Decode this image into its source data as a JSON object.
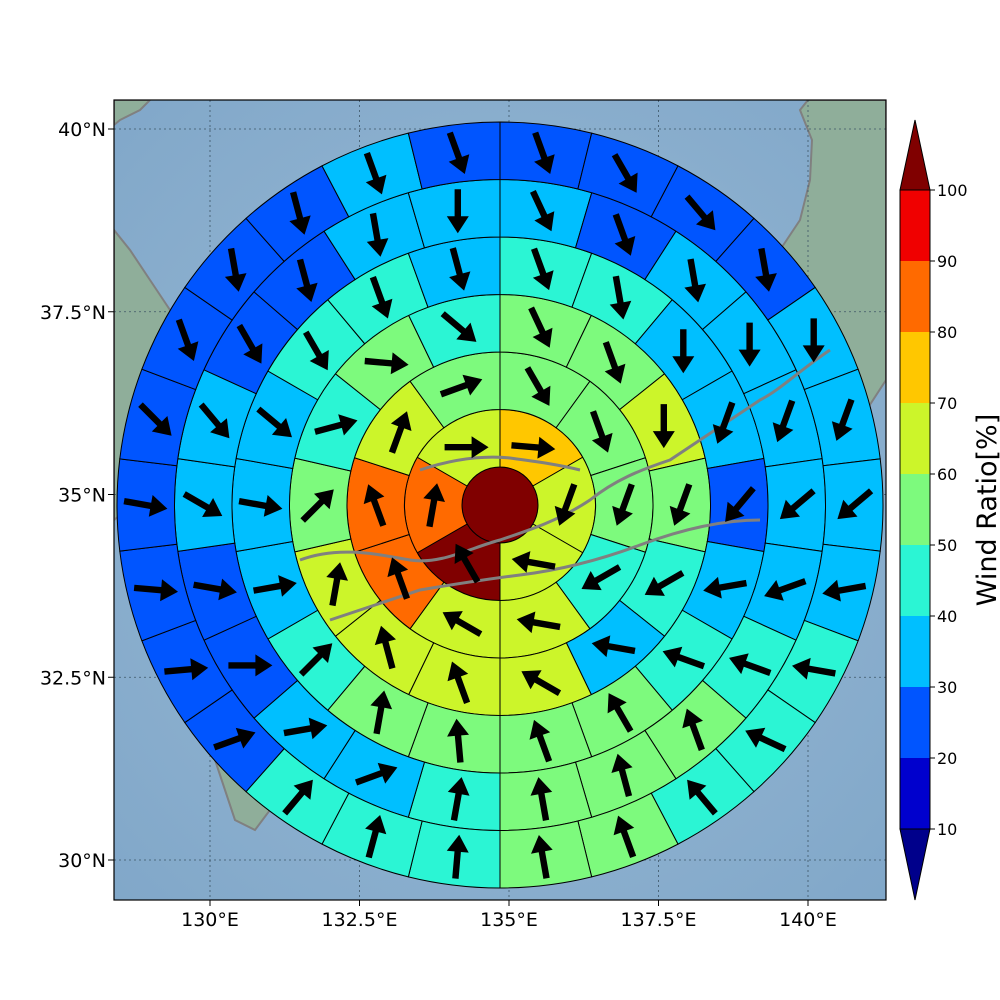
{
  "map": {
    "x_ticks": [
      "130°E",
      "132.5°E",
      "135°E",
      "137.5°E",
      "140°E"
    ],
    "y_ticks": [
      "40°N",
      "37.5°N",
      "35°N",
      "32.5°N",
      "30°N"
    ],
    "colors": {
      "ocean_center": "#9bbbd6",
      "ocean_edge": "#7fa6c8",
      "land": "#8fae9a",
      "coastline": "#808080"
    }
  },
  "colorbar": {
    "label": "Wind Ratio[%]",
    "ticks": [
      "10",
      "20",
      "30",
      "40",
      "50",
      "60",
      "70",
      "80",
      "90",
      "100"
    ],
    "bins": [
      "#0000cd",
      "#0055ff",
      "#00bfff",
      "#2bf5d4",
      "#7dfa7d",
      "#ccf52a",
      "#ffc700",
      "#ff6a00",
      "#f00000"
    ],
    "under_color": "#00008b",
    "over_color": "#800000"
  },
  "chart_data": {
    "type": "heatmap",
    "center_color": "#800000",
    "rings": [
      {
        "ring": 1,
        "sectors": [
          {
            "color": "#ffc700",
            "arrow_deg": 95
          },
          {
            "color": "#ccf52a",
            "arrow_deg": 200
          },
          {
            "color": "#ccf52a",
            "arrow_deg": 280
          },
          {
            "color": "#800000",
            "arrow_deg": 330
          },
          {
            "color": "#ff6a00",
            "arrow_deg": 10
          },
          {
            "color": "#ccf52a",
            "arrow_deg": 90
          }
        ]
      },
      {
        "ring": 2,
        "sectors": [
          {
            "color": "#7dfa7d",
            "arrow_deg": 150
          },
          {
            "color": "#7dfa7d",
            "arrow_deg": 160
          },
          {
            "color": "#7dfa7d",
            "arrow_deg": 200
          },
          {
            "color": "#2bf5d4",
            "arrow_deg": 240
          },
          {
            "color": "#ccf52a",
            "arrow_deg": 280
          },
          {
            "color": "#ccf52a",
            "arrow_deg": 300
          },
          {
            "color": "#ff6a00",
            "arrow_deg": 340
          },
          {
            "color": "#ff6a00",
            "arrow_deg": 340
          },
          {
            "color": "#ccf52a",
            "arrow_deg": 20
          },
          {
            "color": "#7dfa7d",
            "arrow_deg": 70
          }
        ]
      },
      {
        "ring": 3,
        "sectors": [
          {
            "color": "#7dfa7d",
            "arrow_deg": 155
          },
          {
            "color": "#7dfa7d",
            "arrow_deg": 160
          },
          {
            "color": "#ccf52a",
            "arrow_deg": 180
          },
          {
            "color": "#7dfa7d",
            "arrow_deg": 200
          },
          {
            "color": "#2bf5d4",
            "arrow_deg": 240
          },
          {
            "color": "#00bfff",
            "arrow_deg": 280
          },
          {
            "color": "#ccf52a",
            "arrow_deg": 300
          },
          {
            "color": "#ccf52a",
            "arrow_deg": 340
          },
          {
            "color": "#ccf52a",
            "arrow_deg": 345
          },
          {
            "color": "#ccf52a",
            "arrow_deg": 10
          },
          {
            "color": "#7dfa7d",
            "arrow_deg": 45
          },
          {
            "color": "#2bf5d4",
            "arrow_deg": 75
          },
          {
            "color": "#7dfa7d",
            "arrow_deg": 95
          },
          {
            "color": "#2bf5d4",
            "arrow_deg": 130
          }
        ]
      },
      {
        "ring": 4,
        "sectors": [
          {
            "color": "#2bf5d4",
            "arrow_deg": 160
          },
          {
            "color": "#2bf5d4",
            "arrow_deg": 170
          },
          {
            "color": "#00bfff",
            "arrow_deg": 180
          },
          {
            "color": "#00bfff",
            "arrow_deg": 200
          },
          {
            "color": "#0055ff",
            "arrow_deg": 220
          },
          {
            "color": "#00bfff",
            "arrow_deg": 260
          },
          {
            "color": "#2bf5d4",
            "arrow_deg": 290
          },
          {
            "color": "#7dfa7d",
            "arrow_deg": 330
          },
          {
            "color": "#7dfa7d",
            "arrow_deg": 340
          },
          {
            "color": "#7dfa7d",
            "arrow_deg": 355
          },
          {
            "color": "#7dfa7d",
            "arrow_deg": 10
          },
          {
            "color": "#2bf5d4",
            "arrow_deg": 45
          },
          {
            "color": "#00bfff",
            "arrow_deg": 80
          },
          {
            "color": "#00bfff",
            "arrow_deg": 100
          },
          {
            "color": "#00bfff",
            "arrow_deg": 130
          },
          {
            "color": "#2bf5d4",
            "arrow_deg": 150
          },
          {
            "color": "#2bf5d4",
            "arrow_deg": 160
          },
          {
            "color": "#00bfff",
            "arrow_deg": 165
          }
        ]
      },
      {
        "ring": 5,
        "sectors": [
          {
            "color": "#00bfff",
            "arrow_deg": 155
          },
          {
            "color": "#0055ff",
            "arrow_deg": 160
          },
          {
            "color": "#00bfff",
            "arrow_deg": 170
          },
          {
            "color": "#00bfff",
            "arrow_deg": 180
          },
          {
            "color": "#00bfff",
            "arrow_deg": 200
          },
          {
            "color": "#00bfff",
            "arrow_deg": 230
          },
          {
            "color": "#00bfff",
            "arrow_deg": 250
          },
          {
            "color": "#2bf5d4",
            "arrow_deg": 290
          },
          {
            "color": "#7dfa7d",
            "arrow_deg": 340
          },
          {
            "color": "#7dfa7d",
            "arrow_deg": 345
          },
          {
            "color": "#7dfa7d",
            "arrow_deg": 350
          },
          {
            "color": "#2bf5d4",
            "arrow_deg": 10
          },
          {
            "color": "#00bfff",
            "arrow_deg": 70
          },
          {
            "color": "#00bfff",
            "arrow_deg": 80
          },
          {
            "color": "#0055ff",
            "arrow_deg": 90
          },
          {
            "color": "#0055ff",
            "arrow_deg": 100
          },
          {
            "color": "#00bfff",
            "arrow_deg": 120
          },
          {
            "color": "#00bfff",
            "arrow_deg": 140
          },
          {
            "color": "#0055ff",
            "arrow_deg": 150
          },
          {
            "color": "#0055ff",
            "arrow_deg": 165
          },
          {
            "color": "#00bfff",
            "arrow_deg": 170
          },
          {
            "color": "#00bfff",
            "arrow_deg": 180
          }
        ]
      },
      {
        "ring": 6,
        "sectors": [
          {
            "color": "#0055ff",
            "arrow_deg": 160
          },
          {
            "color": "#0055ff",
            "arrow_deg": 150
          },
          {
            "color": "#0055ff",
            "arrow_deg": 140
          },
          {
            "color": "#0055ff",
            "arrow_deg": 170
          },
          {
            "color": "#00bfff",
            "arrow_deg": 180
          },
          {
            "color": "#00bfff",
            "arrow_deg": 200
          },
          {
            "color": "#00bfff",
            "arrow_deg": 230
          },
          {
            "color": "#00bfff",
            "arrow_deg": 260
          },
          {
            "color": "#2bf5d4",
            "arrow_deg": 280
          },
          {
            "color": "#2bf5d4",
            "arrow_deg": 295
          },
          {
            "color": "#2bf5d4",
            "arrow_deg": 320
          },
          {
            "color": "#7dfa7d",
            "arrow_deg": 340
          },
          {
            "color": "#7dfa7d",
            "arrow_deg": 350
          },
          {
            "color": "#2bf5d4",
            "arrow_deg": 5
          },
          {
            "color": "#2bf5d4",
            "arrow_deg": 15
          },
          {
            "color": "#2bf5d4",
            "arrow_deg": 40
          },
          {
            "color": "#0055ff",
            "arrow_deg": 70
          },
          {
            "color": "#0055ff",
            "arrow_deg": 85
          },
          {
            "color": "#0055ff",
            "arrow_deg": 95
          },
          {
            "color": "#0055ff",
            "arrow_deg": 100
          },
          {
            "color": "#0055ff",
            "arrow_deg": 135
          },
          {
            "color": "#0055ff",
            "arrow_deg": 160
          },
          {
            "color": "#0055ff",
            "arrow_deg": 170
          },
          {
            "color": "#0055ff",
            "arrow_deg": 165
          },
          {
            "color": "#00bfff",
            "arrow_deg": 160
          },
          {
            "color": "#0055ff",
            "arrow_deg": 160
          }
        ]
      }
    ]
  }
}
